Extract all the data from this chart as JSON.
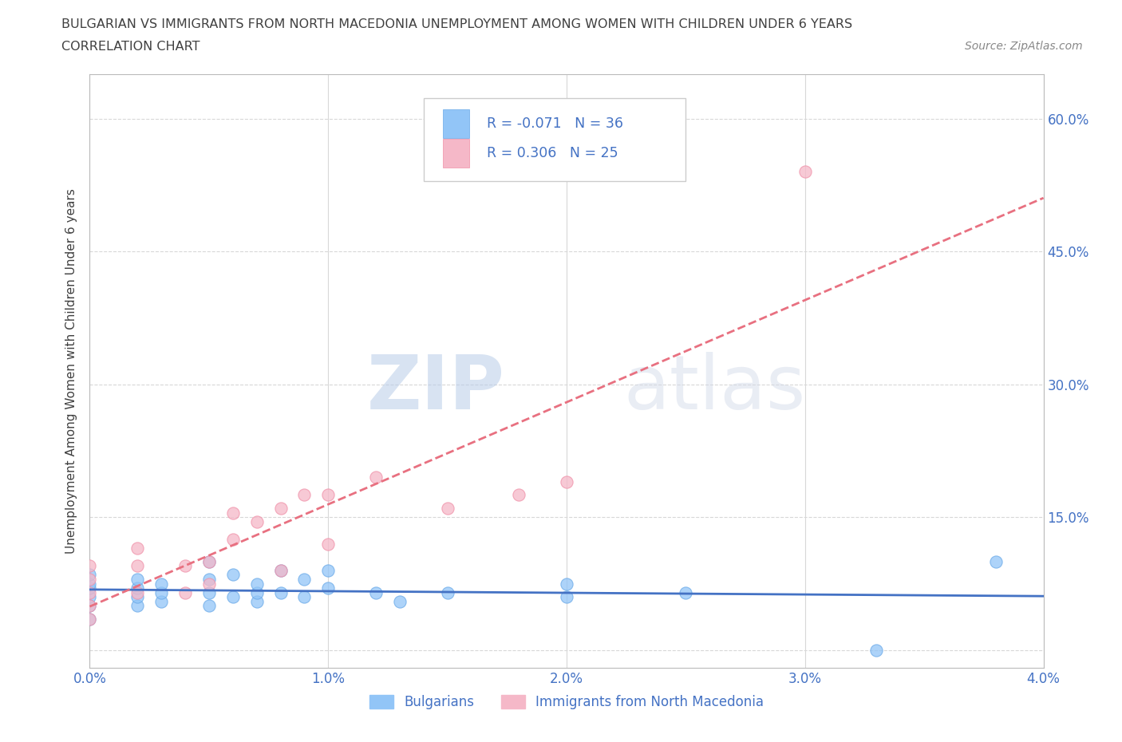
{
  "title_line1": "BULGARIAN VS IMMIGRANTS FROM NORTH MACEDONIA UNEMPLOYMENT AMONG WOMEN WITH CHILDREN UNDER 6 YEARS",
  "title_line2": "CORRELATION CHART",
  "source_text": "Source: ZipAtlas.com",
  "ylabel": "Unemployment Among Women with Children Under 6 years",
  "watermark_zip": "ZIP",
  "watermark_atlas": "atlas",
  "xlim": [
    0.0,
    0.04
  ],
  "ylim": [
    -0.02,
    0.65
  ],
  "xticks": [
    0.0,
    0.01,
    0.02,
    0.03,
    0.04
  ],
  "xtick_labels": [
    "0.0%",
    "1.0%",
    "2.0%",
    "3.0%",
    "4.0%"
  ],
  "ytick_positions": [
    0.0,
    0.15,
    0.3,
    0.45,
    0.6
  ],
  "ytick_labels_right": [
    "",
    "15.0%",
    "30.0%",
    "45.0%",
    "60.0%"
  ],
  "bulgarian_color": "#92c5f7",
  "immigrant_color": "#f5b8c8",
  "bulgarian_edge_color": "#6aaae8",
  "immigrant_edge_color": "#f090a8",
  "bulgarian_line_color": "#4472c4",
  "immigrant_line_color": "#e87080",
  "legend_label_bulgarian": "Bulgarians",
  "legend_label_immigrant": "Immigrants from North Macedonia",
  "R_bulgarian": -0.071,
  "N_bulgarian": 36,
  "R_immigrant": 0.306,
  "N_immigrant": 25,
  "bulgarian_x": [
    0.0,
    0.0,
    0.0,
    0.0,
    0.0,
    0.0,
    0.002,
    0.002,
    0.002,
    0.002,
    0.003,
    0.003,
    0.003,
    0.005,
    0.005,
    0.005,
    0.005,
    0.006,
    0.006,
    0.007,
    0.007,
    0.007,
    0.008,
    0.008,
    0.009,
    0.009,
    0.01,
    0.01,
    0.012,
    0.013,
    0.015,
    0.02,
    0.02,
    0.025,
    0.033,
    0.038
  ],
  "bulgarian_y": [
    0.035,
    0.05,
    0.06,
    0.07,
    0.075,
    0.085,
    0.05,
    0.06,
    0.07,
    0.08,
    0.055,
    0.065,
    0.075,
    0.05,
    0.065,
    0.08,
    0.1,
    0.06,
    0.085,
    0.055,
    0.065,
    0.075,
    0.065,
    0.09,
    0.06,
    0.08,
    0.07,
    0.09,
    0.065,
    0.055,
    0.065,
    0.06,
    0.075,
    0.065,
    0.0,
    0.1
  ],
  "immigrant_x": [
    0.0,
    0.0,
    0.0,
    0.0,
    0.0,
    0.002,
    0.002,
    0.002,
    0.004,
    0.004,
    0.005,
    0.005,
    0.006,
    0.006,
    0.007,
    0.008,
    0.008,
    0.009,
    0.01,
    0.01,
    0.012,
    0.015,
    0.018,
    0.02,
    0.03
  ],
  "immigrant_y": [
    0.035,
    0.05,
    0.065,
    0.08,
    0.095,
    0.065,
    0.095,
    0.115,
    0.065,
    0.095,
    0.075,
    0.1,
    0.125,
    0.155,
    0.145,
    0.09,
    0.16,
    0.175,
    0.12,
    0.175,
    0.195,
    0.16,
    0.175,
    0.19,
    0.54
  ],
  "background_color": "#ffffff",
  "grid_color": "#d8d8d8",
  "title_color": "#404040",
  "axis_text_color": "#4472c4",
  "source_color": "#888888"
}
